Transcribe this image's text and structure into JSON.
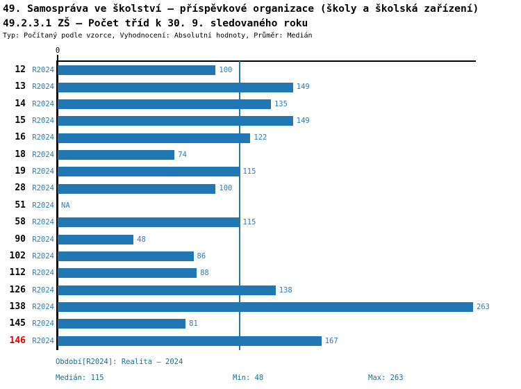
{
  "header": {
    "title_line1": "49. Samospráva ve školství – příspěvkové organizace (školy a školská zařízení)",
    "title_line2": "49.2.3.1 ZŠ – Počet tříd k 30. 9. sledovaného roku",
    "meta_line": "Typ: Počítaný podle vzorce, Vyhodnocení: Absolutní hodnoty, Průměr: Medián"
  },
  "axis": {
    "zero_label": "0"
  },
  "rows": [
    {
      "category": "12",
      "period": "R2024",
      "value": 100,
      "value_label": "100",
      "highlight": false
    },
    {
      "category": "13",
      "period": "R2024",
      "value": 149,
      "value_label": "149",
      "highlight": false
    },
    {
      "category": "14",
      "period": "R2024",
      "value": 135,
      "value_label": "135",
      "highlight": false
    },
    {
      "category": "15",
      "period": "R2024",
      "value": 149,
      "value_label": "149",
      "highlight": false
    },
    {
      "category": "16",
      "period": "R2024",
      "value": 122,
      "value_label": "122",
      "highlight": false
    },
    {
      "category": "18",
      "period": "R2024",
      "value": 74,
      "value_label": "74",
      "highlight": false
    },
    {
      "category": "19",
      "period": "R2024",
      "value": 115,
      "value_label": "115",
      "highlight": false
    },
    {
      "category": "28",
      "period": "R2024",
      "value": 100,
      "value_label": "100",
      "highlight": false
    },
    {
      "category": "51",
      "period": "R2024",
      "value": null,
      "value_label": "NA",
      "highlight": false
    },
    {
      "category": "58",
      "period": "R2024",
      "value": 115,
      "value_label": "115",
      "highlight": false
    },
    {
      "category": "90",
      "period": "R2024",
      "value": 48,
      "value_label": "48",
      "highlight": false
    },
    {
      "category": "102",
      "period": "R2024",
      "value": 86,
      "value_label": "86",
      "highlight": false
    },
    {
      "category": "112",
      "period": "R2024",
      "value": 88,
      "value_label": "88",
      "highlight": false
    },
    {
      "category": "126",
      "period": "R2024",
      "value": 138,
      "value_label": "138",
      "highlight": false
    },
    {
      "category": "138",
      "period": "R2024",
      "value": 263,
      "value_label": "263",
      "highlight": false
    },
    {
      "category": "145",
      "period": "R2024",
      "value": 81,
      "value_label": "81",
      "highlight": false
    },
    {
      "category": "146",
      "period": "R2024",
      "value": 167,
      "value_label": "167",
      "highlight": true
    }
  ],
  "footer": {
    "period_text": "Období[R2024]: Realita – 2024",
    "median_text": "Medián: 115",
    "min_text": "Min: 48",
    "max_text": "Max: 263"
  },
  "colors": {
    "bar": "#2176b4",
    "value_text": "#2b7cb9",
    "footer_text": "#19708f",
    "highlight_text": "#e10000",
    "median_line": "#2176b4"
  },
  "chart_data": {
    "type": "bar",
    "orientation": "horizontal",
    "title": "49.2.3.1 ZŠ – Počet tříd k 30. 9. sledovaného roku",
    "subtitle": "Typ: Počítaný podle vzorce, Vyhodnocení: Absolutní hodnoty, Průměr: Medián",
    "categories": [
      "12",
      "13",
      "14",
      "15",
      "16",
      "18",
      "19",
      "28",
      "51",
      "58",
      "90",
      "102",
      "112",
      "126",
      "138",
      "145",
      "146"
    ],
    "series": [
      {
        "name": "R2024",
        "values": [
          100,
          149,
          135,
          149,
          122,
          74,
          115,
          100,
          null,
          115,
          48,
          86,
          88,
          138,
          263,
          81,
          167
        ]
      }
    ],
    "na_label": "NA",
    "xlabel": "",
    "ylabel": "",
    "xlim": [
      0,
      263
    ],
    "x_ticks_shown": [
      0
    ],
    "grid": false,
    "legend": "none",
    "median": 115,
    "min": 48,
    "max": 263,
    "median_line_at": 115,
    "highlighted_category": "146",
    "period": "Realita – 2024"
  }
}
